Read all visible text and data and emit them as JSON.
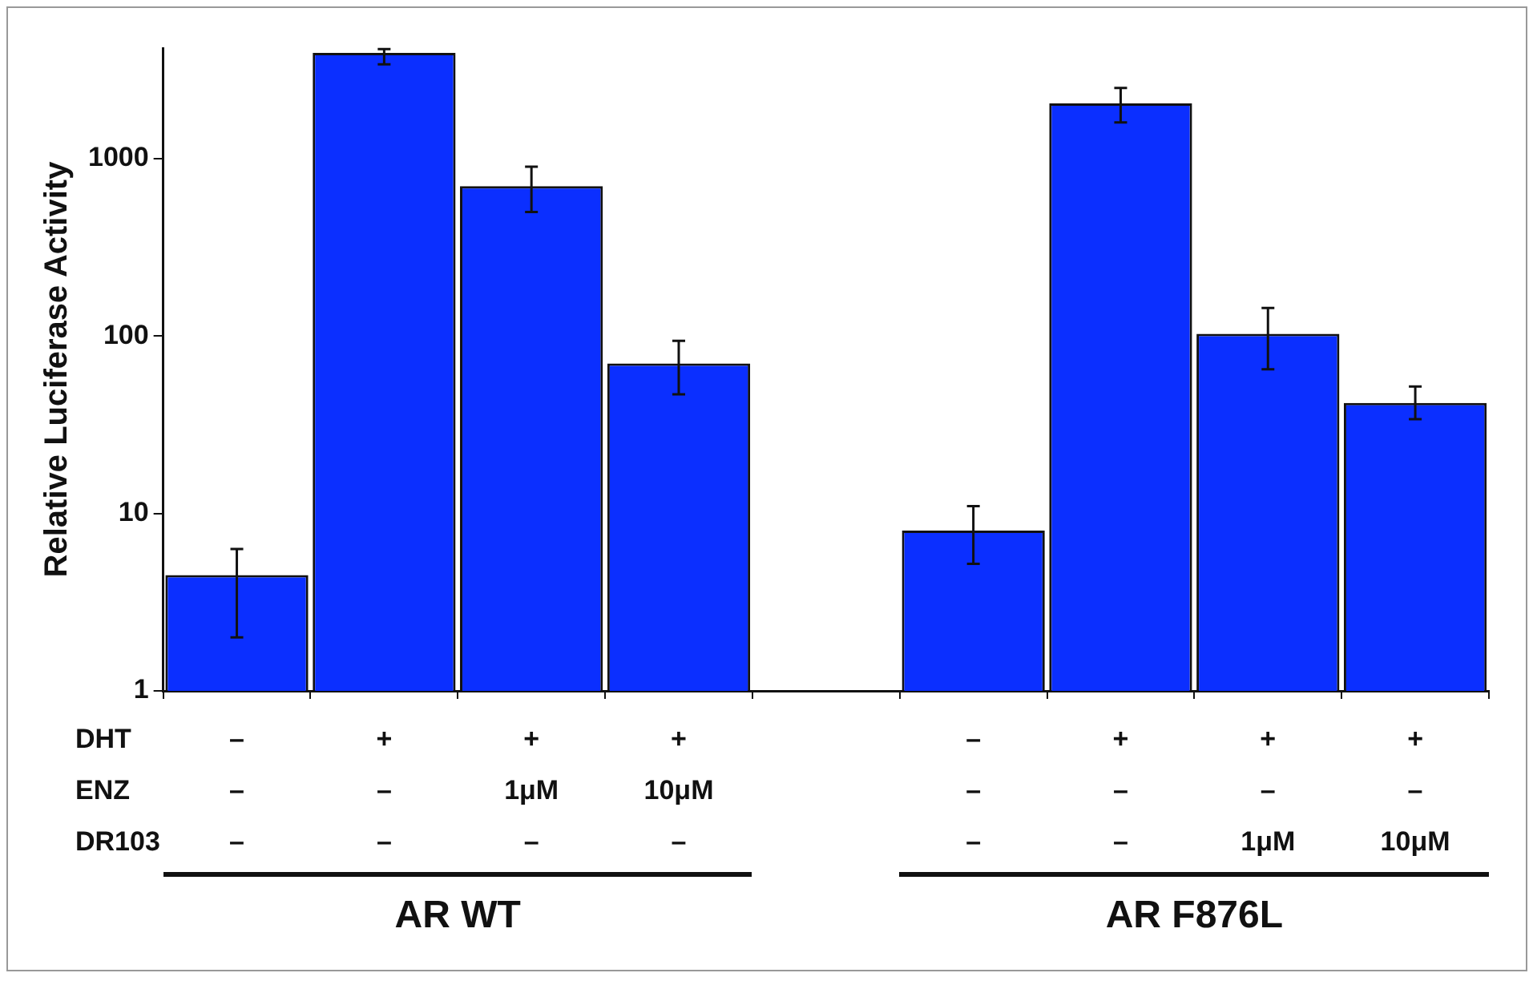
{
  "chart_data": {
    "type": "bar",
    "ylabel": "Relative Luciferase Activity",
    "categories": [
      "–\n–\n–",
      "+\n–\n–",
      "+\n1μM\n–",
      "+\n10μM\n–",
      null,
      "–\n–\n–",
      "+\n–\n–",
      "+\n–\n1μM",
      "+\n–\n10μM"
    ],
    "series": [
      {
        "color": "#0b2fff",
        "values": [
          4.5,
          3950,
          700,
          70,
          null,
          8,
          2050,
          103,
          42
        ],
        "errors": [
          [
            2.0,
            6.3
          ],
          [
            3400,
            4150
          ],
          [
            500,
            900
          ],
          [
            47,
            94
          ],
          null,
          [
            5.2,
            11
          ],
          [
            1600,
            2500
          ],
          [
            65,
            144
          ],
          [
            34,
            52
          ]
        ]
      }
    ],
    "log": true,
    "ylim": [
      1,
      4200
    ],
    "yticks": [
      1,
      10,
      100,
      1000
    ],
    "grid": false,
    "legend": false,
    "annotations": [
      "DHT",
      "ENZ",
      "DR103",
      "AR WT",
      "AR F876L"
    ]
  }
}
